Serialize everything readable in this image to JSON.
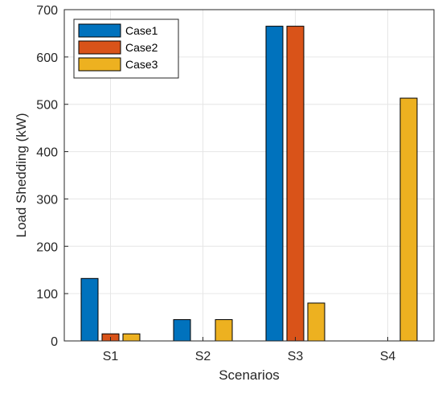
{
  "chart_data": {
    "type": "bar",
    "title": "",
    "xlabel": "Scenarios",
    "ylabel": "Load Shedding (kW)",
    "categories": [
      "S1",
      "S2",
      "S3",
      "S4"
    ],
    "ylim": [
      0,
      700
    ],
    "yticks": [
      0,
      100,
      200,
      300,
      400,
      500,
      600,
      700
    ],
    "grid": true,
    "legend_position": "top-left",
    "series": [
      {
        "name": "Case1",
        "color": "#0072BD",
        "values": [
          132,
          45,
          665,
          0
        ]
      },
      {
        "name": "Case2",
        "color": "#D95319",
        "values": [
          15,
          0,
          665,
          0
        ]
      },
      {
        "name": "Case3",
        "color": "#EDB120",
        "values": [
          15,
          45,
          80,
          513
        ]
      }
    ]
  }
}
